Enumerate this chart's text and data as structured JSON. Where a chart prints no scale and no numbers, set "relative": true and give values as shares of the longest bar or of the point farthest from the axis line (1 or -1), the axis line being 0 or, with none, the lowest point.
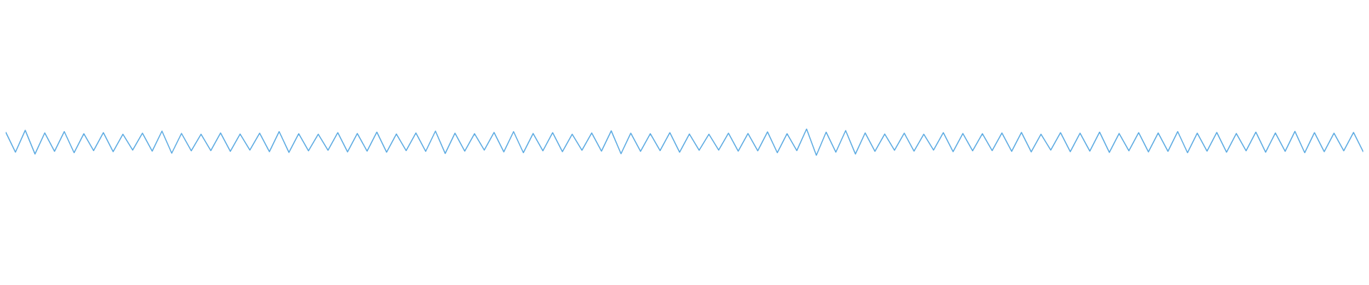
{
  "chart_data": {
    "type": "line",
    "relative": true,
    "legend": false,
    "marker": "none",
    "line_style": "solid",
    "categories": [
      null,
      null,
      null,
      null,
      null,
      null,
      null,
      null,
      null,
      null,
      null,
      null,
      null,
      null,
      null,
      null,
      null,
      null,
      null,
      null,
      null,
      null,
      null,
      null,
      null,
      null,
      null,
      null,
      null,
      null,
      null,
      null,
      null,
      null,
      null,
      null,
      null,
      null,
      null,
      null,
      null,
      null,
      null,
      null,
      null,
      null,
      null,
      null,
      null,
      null,
      null,
      null,
      null,
      null,
      null,
      null,
      null,
      null,
      null,
      null,
      null,
      null,
      null,
      null,
      null,
      null,
      null,
      null,
      null,
      null,
      null,
      null,
      null,
      null,
      null,
      null,
      null,
      null,
      null,
      null,
      null,
      null,
      null,
      null,
      null,
      null,
      null,
      null,
      null,
      null,
      null,
      null,
      null,
      null,
      null,
      null,
      null,
      null,
      null,
      null,
      null,
      null,
      null,
      null,
      null,
      null,
      null,
      null,
      null,
      null,
      null,
      null,
      null,
      null,
      null,
      null,
      null,
      null,
      null,
      null,
      null,
      null,
      null,
      null,
      null,
      null,
      null,
      null,
      null,
      null,
      null,
      null,
      null,
      null,
      null,
      null,
      null,
      null,
      null,
      null
    ],
    "series": [
      {
        "color": "#5dabe2",
        "values": [
          0.88,
          0.12,
          0.95,
          0.05,
          0.85,
          0.15,
          0.9,
          0.1,
          0.82,
          0.18,
          0.86,
          0.14,
          0.8,
          0.2,
          0.84,
          0.16,
          0.92,
          0.08,
          0.83,
          0.17,
          0.8,
          0.18,
          0.85,
          0.15,
          0.81,
          0.2,
          0.84,
          0.14,
          0.9,
          0.11,
          0.82,
          0.17,
          0.8,
          0.19,
          0.86,
          0.13,
          0.83,
          0.16,
          0.88,
          0.12,
          0.81,
          0.18,
          0.85,
          0.15,
          0.92,
          0.07,
          0.84,
          0.16,
          0.82,
          0.2,
          0.87,
          0.13,
          0.9,
          0.1,
          0.83,
          0.17,
          0.86,
          0.14,
          0.8,
          0.19,
          0.85,
          0.16,
          0.93,
          0.06,
          0.84,
          0.15,
          0.82,
          0.18,
          0.86,
          0.12,
          0.81,
          0.19,
          0.8,
          0.2,
          0.84,
          0.16,
          0.83,
          0.17,
          0.89,
          0.1,
          0.82,
          0.18,
          1,
          0,
          0.88,
          0.12,
          0.94,
          0.05,
          0.85,
          0.15,
          0.81,
          0.19,
          0.84,
          0.16,
          0.8,
          0.2,
          0.86,
          0.14,
          0.83,
          0.17,
          0.82,
          0.18,
          0.85,
          0.15,
          0.87,
          0.13,
          0.8,
          0.2,
          0.86,
          0.14,
          0.84,
          0.16,
          0.88,
          0.11,
          0.83,
          0.17,
          0.86,
          0.13,
          0.85,
          0.15,
          0.9,
          0.1,
          0.84,
          0.16,
          0.87,
          0.12,
          0.83,
          0.17,
          0.88,
          0.12,
          0.85,
          0.15,
          0.91,
          0.1,
          0.86,
          0.14,
          0.84,
          0.17,
          0.87,
          0.13
        ]
      }
    ]
  }
}
